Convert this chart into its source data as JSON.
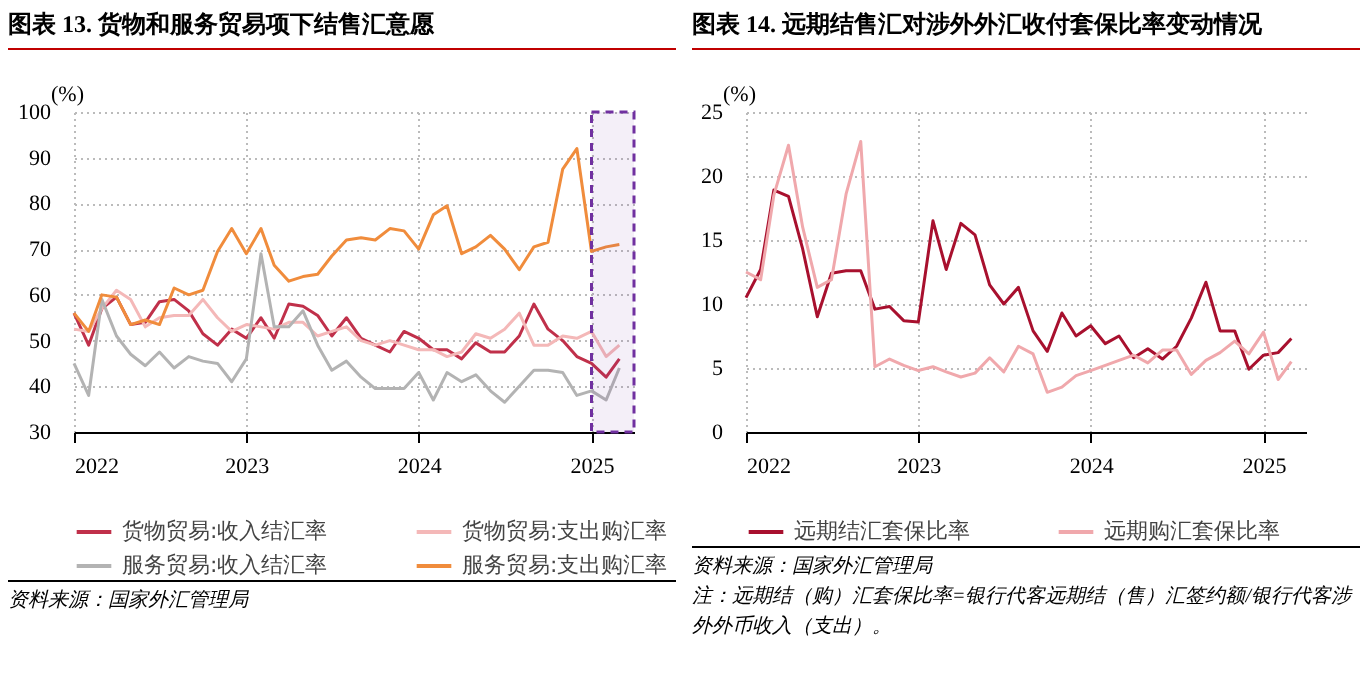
{
  "chart_data": [
    {
      "type": "line",
      "title": "图表 13.  货物和服务贸易项下结售汇意愿",
      "ylabel": "(%)",
      "x": [
        "2022-01",
        "2022-02",
        "2022-03",
        "2022-04",
        "2022-05",
        "2022-06",
        "2022-07",
        "2022-08",
        "2022-09",
        "2022-10",
        "2022-11",
        "2022-12",
        "2023-01",
        "2023-02",
        "2023-03",
        "2023-04",
        "2023-05",
        "2023-06",
        "2023-07",
        "2023-08",
        "2023-09",
        "2023-10",
        "2023-11",
        "2023-12",
        "2024-01",
        "2024-02",
        "2024-03",
        "2024-04",
        "2024-05",
        "2024-06",
        "2024-07",
        "2024-08",
        "2024-09",
        "2024-10",
        "2024-11",
        "2024-12",
        "2025-01",
        "2025-02",
        "2025-03"
      ],
      "series": [
        {
          "name": "货物贸易:收入结汇率",
          "color": "#c0304a",
          "values": [
            56,
            49,
            57,
            59.5,
            53.5,
            54,
            58.5,
            59,
            56.5,
            51.5,
            49,
            52.5,
            50.5,
            55,
            50.5,
            58,
            57.5,
            55.5,
            51,
            55,
            50.5,
            49,
            47.5,
            52,
            50.5,
            48,
            48,
            46,
            49.5,
            47.5,
            47.5,
            51,
            58,
            52.5,
            50,
            46.5,
            45,
            42,
            46
          ]
        },
        {
          "name": "货物贸易:支出购汇率",
          "color": "#f4b8b8",
          "values": [
            52.5,
            52,
            57,
            61,
            59,
            53,
            55,
            55.5,
            55.5,
            59,
            55,
            52,
            53.5,
            53,
            52.5,
            54,
            54,
            51,
            52,
            53,
            50,
            49,
            50,
            49,
            48,
            48,
            46.5,
            47.5,
            51.5,
            50.5,
            52.5,
            56,
            49,
            49,
            51,
            50.5,
            52,
            46.5,
            49
          ]
        },
        {
          "name": "服务贸易:收入结汇率",
          "color": "#b3b3b3",
          "values": [
            45,
            38,
            59,
            51,
            47,
            44.5,
            47.5,
            44,
            46.5,
            45.5,
            45,
            41,
            46,
            69,
            53,
            53,
            56.5,
            49,
            43.5,
            45.5,
            42,
            39.5,
            39.5,
            39.5,
            43,
            37,
            43,
            41,
            42.5,
            39,
            36.5,
            40,
            43.5,
            43.5,
            43,
            38,
            39,
            37,
            44
          ]
        },
        {
          "name": "服务贸易:支出购汇率",
          "color": "#f08c3c",
          "values": [
            56,
            52,
            60,
            59.5,
            53.5,
            54.5,
            53.5,
            61.5,
            60,
            61,
            69.5,
            74.5,
            69,
            74.5,
            66.5,
            63,
            64,
            64.5,
            68.5,
            72,
            72.5,
            72,
            74.5,
            74,
            70,
            77.5,
            79.5,
            69,
            70.5,
            73,
            70,
            65.5,
            70.5,
            71.5,
            87.5,
            92,
            69.5,
            70.5,
            71
          ]
        }
      ],
      "xlim": [
        "2022-01",
        "2025-04"
      ],
      "xticks": [
        "2022",
        "2023",
        "2024",
        "2025"
      ],
      "ylim": [
        30,
        100
      ],
      "yticks": [
        30,
        40,
        50,
        60,
        70,
        80,
        90,
        100
      ],
      "bands": [
        {
          "axis": "x",
          "from": "2025-01",
          "to": "2025-04",
          "color": "#7030a0"
        }
      ],
      "grid": true,
      "legend": "bottom",
      "annotations": [
        "资料来源：国家外汇管理局"
      ]
    },
    {
      "type": "line",
      "title": "图表 14.  远期结售汇对涉外外汇收付套保比率变动情况",
      "ylabel": "(%)",
      "x": [
        "2022-01",
        "2022-02",
        "2022-03",
        "2022-04",
        "2022-05",
        "2022-06",
        "2022-07",
        "2022-08",
        "2022-09",
        "2022-10",
        "2022-11",
        "2022-12",
        "2023-01",
        "2023-02",
        "2023-03",
        "2023-04",
        "2023-05",
        "2023-06",
        "2023-07",
        "2023-08",
        "2023-09",
        "2023-10",
        "2023-11",
        "2023-12",
        "2024-01",
        "2024-02",
        "2024-03",
        "2024-04",
        "2024-05",
        "2024-06",
        "2024-07",
        "2024-08",
        "2024-09",
        "2024-10",
        "2024-11",
        "2024-12",
        "2025-01",
        "2025-02",
        "2025-03"
      ],
      "series": [
        {
          "name": "远期结汇套保比率",
          "color": "#a8102e",
          "values": [
            10.5,
            12.7,
            18.9,
            18.4,
            14.3,
            9,
            12.4,
            12.6,
            12.6,
            9.6,
            9.8,
            8.7,
            8.6,
            16.5,
            12.7,
            16.3,
            15.4,
            11.5,
            10,
            11.3,
            7.9,
            6.3,
            9.3,
            7.5,
            8.3,
            6.9,
            7.5,
            5.8,
            6.5,
            5.7,
            6.7,
            8.9,
            11.7,
            7.9,
            7.9,
            4.9,
            6,
            6.2,
            7.3
          ]
        },
        {
          "name": "远期购汇套保比率",
          "color": "#f0a8ac",
          "values": [
            12.5,
            11.9,
            18.5,
            22.4,
            16,
            11.3,
            11.9,
            18.6,
            22.7,
            5.1,
            5.7,
            5.2,
            4.8,
            5.1,
            4.7,
            4.3,
            4.6,
            5.8,
            4.7,
            6.7,
            6.1,
            3.1,
            3.5,
            4.4,
            4.8,
            5.2,
            5.6,
            6,
            5.4,
            6.4,
            6.4,
            4.5,
            5.6,
            6.2,
            7.1,
            6.1,
            7.8,
            4.1,
            5.5
          ]
        }
      ],
      "xlim": [
        "2022-01",
        "2025-04"
      ],
      "xticks": [
        "2022",
        "2023",
        "2024",
        "2025"
      ],
      "ylim": [
        0,
        25
      ],
      "yticks": [
        0,
        5,
        10,
        15,
        20,
        25
      ],
      "grid": true,
      "legend": "bottom",
      "annotations": [
        "资料来源：国家外汇管理局",
        "注：远期结（购）汇套保比率=银行代客远期结（售）汇签约额/银行代客涉外外币收入（支出）。"
      ]
    }
  ]
}
